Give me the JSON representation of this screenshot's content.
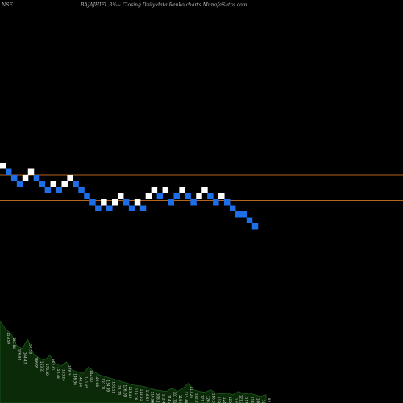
{
  "header": {
    "exchange": "NSE",
    "title": "BAJAJHIFL 3%~ Closing Daily data Renko charts MunafaSutra.com"
  },
  "chart_data": {
    "type": "renko",
    "brick_size_label": "3%",
    "y_axis": "relative brick level (0 = first brick)",
    "bricks": [
      {
        "level": 0,
        "direction": "up"
      },
      {
        "level": -1,
        "direction": "down"
      },
      {
        "level": -2,
        "direction": "down"
      },
      {
        "level": -3,
        "direction": "down"
      },
      {
        "level": -2,
        "direction": "up"
      },
      {
        "level": -1,
        "direction": "up"
      },
      {
        "level": -2,
        "direction": "down"
      },
      {
        "level": -3,
        "direction": "down"
      },
      {
        "level": -4,
        "direction": "down"
      },
      {
        "level": -3,
        "direction": "up"
      },
      {
        "level": -4,
        "direction": "down"
      },
      {
        "level": -3,
        "direction": "up"
      },
      {
        "level": -2,
        "direction": "up"
      },
      {
        "level": -3,
        "direction": "down"
      },
      {
        "level": -4,
        "direction": "down"
      },
      {
        "level": -5,
        "direction": "down"
      },
      {
        "level": -6,
        "direction": "down"
      },
      {
        "level": -7,
        "direction": "down"
      },
      {
        "level": -6,
        "direction": "up"
      },
      {
        "level": -7,
        "direction": "down"
      },
      {
        "level": -6,
        "direction": "up"
      },
      {
        "level": -5,
        "direction": "up"
      },
      {
        "level": -6,
        "direction": "down"
      },
      {
        "level": -7,
        "direction": "down"
      },
      {
        "level": -6,
        "direction": "up"
      },
      {
        "level": -7,
        "direction": "down"
      },
      {
        "level": -5,
        "direction": "up"
      },
      {
        "level": -4,
        "direction": "up"
      },
      {
        "level": -5,
        "direction": "down"
      },
      {
        "level": -4,
        "direction": "up"
      },
      {
        "level": -6,
        "direction": "down"
      },
      {
        "level": -5,
        "direction": "down"
      },
      {
        "level": -4,
        "direction": "up"
      },
      {
        "level": -5,
        "direction": "down"
      },
      {
        "level": -6,
        "direction": "down"
      },
      {
        "level": -5,
        "direction": "up"
      },
      {
        "level": -4,
        "direction": "up"
      },
      {
        "level": -5,
        "direction": "down"
      },
      {
        "level": -6,
        "direction": "down"
      },
      {
        "level": -5,
        "direction": "up"
      },
      {
        "level": -6,
        "direction": "down"
      },
      {
        "level": -7,
        "direction": "down"
      },
      {
        "level": -8,
        "direction": "down"
      },
      {
        "level": -8,
        "direction": "down"
      },
      {
        "level": -9,
        "direction": "down"
      },
      {
        "level": -10,
        "direction": "down"
      }
    ],
    "reference_lines": [
      {
        "level": -1.5,
        "color": "#b5651d"
      },
      {
        "level": -5.7,
        "color": "#b5651d"
      }
    ],
    "volume": [
      {
        "value": 100,
        "label": ""
      },
      {
        "value": 90,
        "label": "153.59"
      },
      {
        "value": 84,
        "label": "185.84"
      },
      {
        "value": 70,
        "label": "176.82"
      },
      {
        "value": 66,
        "label": "164.47"
      },
      {
        "value": 78,
        "label": "157.58"
      },
      {
        "value": 60,
        "label": "166.95"
      },
      {
        "value": 55,
        "label": "163.31"
      },
      {
        "value": 52,
        "label": "170.40"
      },
      {
        "value": 58,
        "label": "163.41"
      },
      {
        "value": 48,
        "label": "153.38"
      },
      {
        "value": 45,
        "label": "153.24"
      },
      {
        "value": 50,
        "label": "148.44"
      },
      {
        "value": 40,
        "label": "146.36"
      },
      {
        "value": 38,
        "label": "144.24"
      },
      {
        "value": 36,
        "label": "141.45"
      },
      {
        "value": 44,
        "label": "142.00"
      },
      {
        "value": 38,
        "label": "146.68"
      },
      {
        "value": 34,
        "label": "137.71"
      },
      {
        "value": 32,
        "label": "134.99"
      },
      {
        "value": 30,
        "label": "131.11"
      },
      {
        "value": 28,
        "label": "128.70"
      },
      {
        "value": 26,
        "label": "126.09"
      },
      {
        "value": 24,
        "label": "123.49"
      },
      {
        "value": 22,
        "label": "119.26"
      },
      {
        "value": 21,
        "label": "113.51"
      },
      {
        "value": 20,
        "label": "116.59"
      },
      {
        "value": 18,
        "label": "110.56"
      },
      {
        "value": 16,
        "label": "108.12"
      },
      {
        "value": 15,
        "label": "112.46"
      },
      {
        "value": 14,
        "label": "114.44"
      },
      {
        "value": 18,
        "label": "107.71"
      },
      {
        "value": 14,
        "label": "119.95"
      },
      {
        "value": 18,
        "label": "115.49"
      },
      {
        "value": 24,
        "label": "117.26"
      },
      {
        "value": 16,
        "label": "122.21"
      },
      {
        "value": 14,
        "label": "121.38"
      },
      {
        "value": 13,
        "label": "120.68"
      },
      {
        "value": 16,
        "label": "116.65"
      },
      {
        "value": 12,
        "label": "119.92"
      },
      {
        "value": 11,
        "label": "124.06"
      },
      {
        "value": 12,
        "label": "120.58"
      },
      {
        "value": 10,
        "label": "125.51"
      },
      {
        "value": 14,
        "label": "121.20"
      },
      {
        "value": 11,
        "label": "117.18"
      },
      {
        "value": 12,
        "label": "114.04"
      },
      {
        "value": 10,
        "label": "106.60"
      },
      {
        "value": 8,
        "label": "100.85"
      },
      {
        "value": 10,
        "label": "92.25"
      }
    ],
    "colors": {
      "up_brick": "#ffffff",
      "down_brick": "#1e6ee8",
      "volume_fill": "#0a2a08",
      "volume_line": "#1f5a1c",
      "volume_label": "#d8d8d8",
      "background": "#000000"
    }
  }
}
